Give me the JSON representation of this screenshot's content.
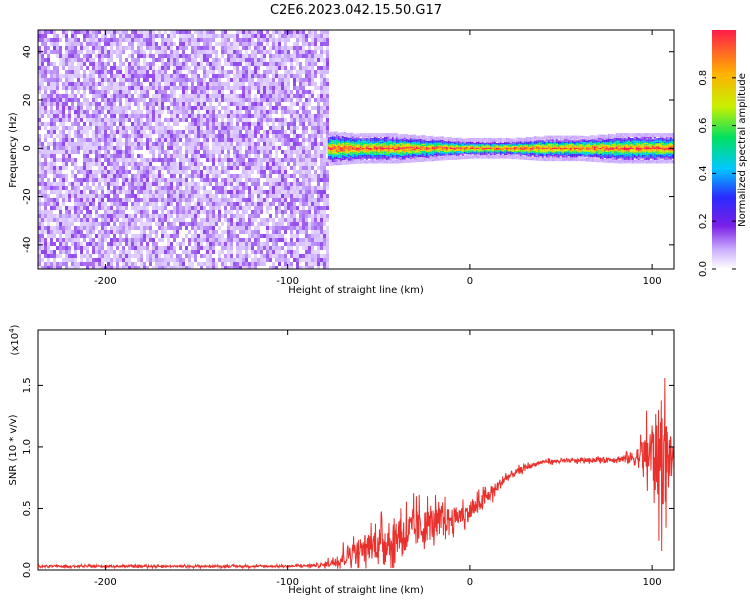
{
  "title": "C2E6.2023.042.15.50.G17",
  "colors": {
    "snr_line": "#e8302c",
    "low_amplitude": "#7b1fe6",
    "high_amplitude": "#ff1a4a"
  },
  "chart_data": [
    {
      "type": "heatmap",
      "title": "C2E6.2023.042.15.50.G17",
      "xlabel": "Height of straight line (km)",
      "ylabel": "Frequency (Hz)",
      "xlim": [
        -237,
        112
      ],
      "ylim": [
        -50,
        49
      ],
      "x_ticks": [
        -200,
        -100,
        0,
        100
      ],
      "y_ticks": [
        -40,
        -20,
        0,
        20,
        40
      ],
      "colorbar": {
        "label": "Normalized spectral amplitude",
        "range": [
          0.0,
          1.0
        ],
        "ticks": [
          "0.0",
          "0.2",
          "0.4",
          "0.6",
          "0.8"
        ],
        "palette": [
          "#ffffff",
          "#cdb0ff",
          "#7b1fe6",
          "#2a2aff",
          "#00c8ff",
          "#00e060",
          "#c8f000",
          "#ffb000",
          "#ff1a4a"
        ]
      },
      "regions": [
        {
          "x_range": [
            -237,
            -78
          ],
          "freq_range": [
            -50,
            49
          ],
          "pattern": "broadband noise",
          "amplitude_range": [
            0.0,
            0.2
          ]
        },
        {
          "x_range": [
            -78,
            112
          ],
          "freq_center": 0,
          "pattern": "narrow band near 0 Hz",
          "amplitude_range": [
            0.4,
            1.0
          ]
        }
      ],
      "band_halfwidth_hz": [
        [
          -78,
          4
        ],
        [
          -60,
          3
        ],
        [
          -40,
          3
        ],
        [
          -20,
          2
        ],
        [
          0,
          1
        ],
        [
          20,
          1
        ],
        [
          40,
          2
        ],
        [
          60,
          2
        ],
        [
          80,
          3
        ],
        [
          100,
          3
        ],
        [
          112,
          3
        ]
      ]
    },
    {
      "type": "line",
      "xlabel": "Height of straight line (km)",
      "ylabel": "SNR (10 * v/v)",
      "y_multiplier": "(x10",
      "y_multiplier_exp": "4",
      "y_multiplier_close": ")",
      "xlim": [
        -237,
        112
      ],
      "ylim": [
        0,
        1.95
      ],
      "x_ticks": [
        -200,
        -100,
        0,
        100
      ],
      "y_ticks": [
        "0.0",
        "0.5",
        "1.0",
        "1.5"
      ],
      "series": [
        {
          "x": [
            -237,
            -200,
            -150,
            -100,
            -80,
            -70,
            -65,
            -60,
            -50,
            -40,
            -30,
            -20,
            -10,
            0,
            10,
            20,
            30,
            40,
            60,
            80,
            90,
            95,
            100,
            105,
            108,
            112
          ],
          "y": [
            0.03,
            0.03,
            0.03,
            0.03,
            0.04,
            0.1,
            0.15,
            0.18,
            0.22,
            0.28,
            0.33,
            0.38,
            0.42,
            0.47,
            0.6,
            0.75,
            0.83,
            0.88,
            0.89,
            0.9,
            0.91,
            0.93,
            0.95,
            0.92,
            0.9,
            0.92
          ],
          "noise_amplitude": [
            0.01,
            0.01,
            0.01,
            0.01,
            0.02,
            0.1,
            0.12,
            0.13,
            0.18,
            0.22,
            0.22,
            0.18,
            0.12,
            0.1,
            0.08,
            0.05,
            0.03,
            0.02,
            0.02,
            0.03,
            0.08,
            0.18,
            0.4,
            0.6,
            0.5,
            0.05
          ]
        }
      ]
    }
  ]
}
